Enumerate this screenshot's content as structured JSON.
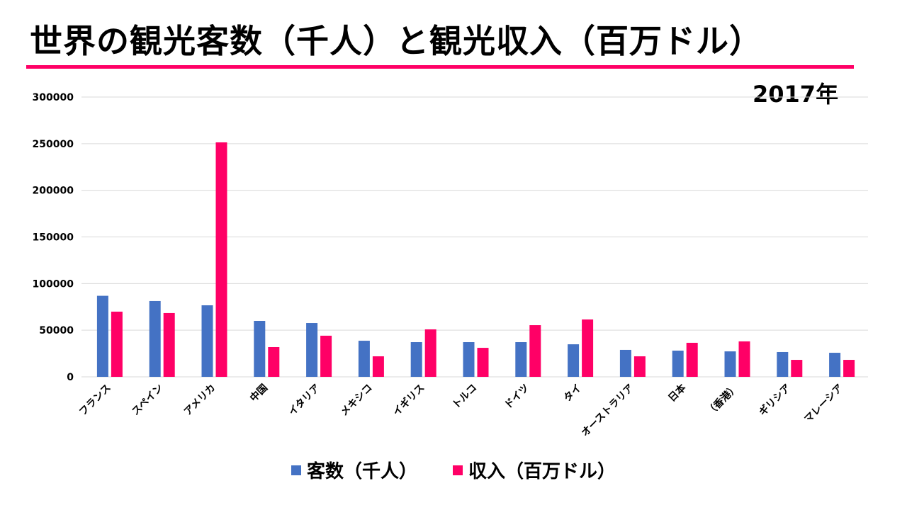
{
  "title": "世界の観光客数（千人）と観光収入（百万ドル）",
  "subtitle": "2017年",
  "colors": {
    "rule": "#ff0066",
    "visitors": "#4472c4",
    "revenue": "#ff0066",
    "grid": "#d9d9d9"
  },
  "chart_data": {
    "type": "bar",
    "title": "世界の観光客数（千人）と観光収入（百万ドル）",
    "categories": [
      "フランス",
      "スペイン",
      "アメリカ",
      "中国",
      "イタリア",
      "メキシコ",
      "イギリス",
      "トルコ",
      "ドイツ",
      "タイ",
      "オーストラリア",
      "日本",
      "（香港）",
      "ギリシア",
      "マレーシア"
    ],
    "series": [
      {
        "name": "客数（千人）",
        "color": "#4472c4",
        "values": [
          86900,
          81300,
          76700,
          60000,
          57700,
          38700,
          37200,
          37200,
          37200,
          34900,
          28900,
          28100,
          27300,
          26600,
          25800
        ]
      },
      {
        "name": "収入（百万ドル）",
        "color": "#ff0066",
        "values": [
          69900,
          68400,
          251400,
          31900,
          44100,
          22000,
          50900,
          31100,
          55400,
          61500,
          22000,
          36500,
          38000,
          18200,
          18200
        ]
      }
    ],
    "yticks": [
      "0",
      "50000",
      "100000",
      "150000",
      "200000",
      "250000",
      "300000"
    ],
    "ylim": [
      0,
      300000
    ],
    "grid": true,
    "legend": "bottom"
  }
}
